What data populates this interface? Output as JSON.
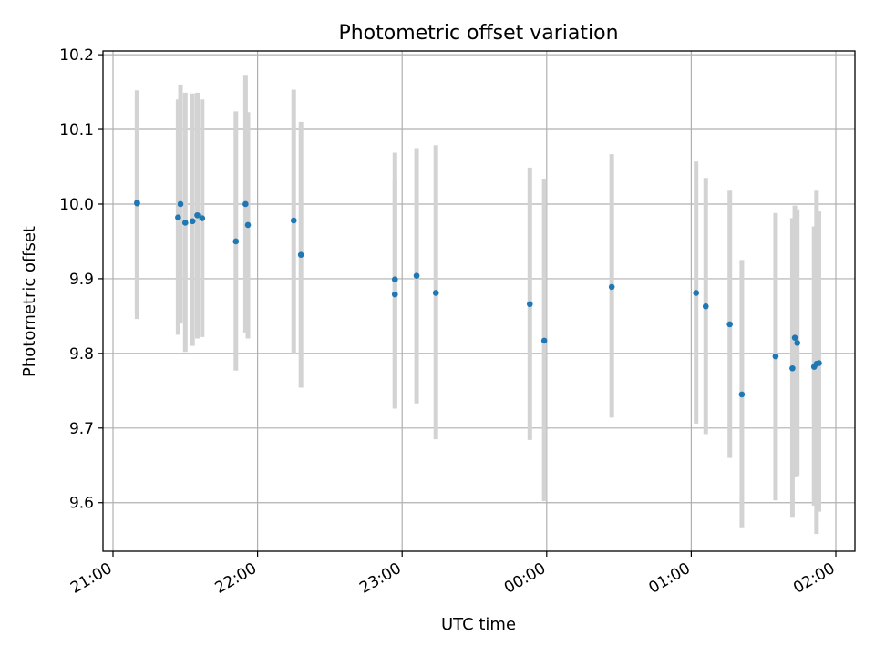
{
  "chart_data": {
    "type": "scatter",
    "title": "Photometric offset variation",
    "xlabel": "UTC time",
    "ylabel": "Photometric offset",
    "x_axis_kind": "time",
    "xlim": [
      "21:00",
      "02:00"
    ],
    "ylim": [
      9.535,
      10.205
    ],
    "x_ticks": [
      "21:00",
      "22:00",
      "23:00",
      "00:00",
      "01:00",
      "02:00"
    ],
    "y_ticks": [
      "9.6",
      "9.7",
      "9.8",
      "9.9",
      "10.0",
      "10.1",
      "10.2"
    ],
    "grid": true,
    "errorbar_color": "#d3d3d3",
    "marker_color": "#1f77b4",
    "points": [
      {
        "time": "21:10",
        "y": 10.001,
        "err_low": 0.155,
        "err_high": 0.151
      },
      {
        "time": "21:10",
        "y": 10.002,
        "err_low": 0.148,
        "err_high": 0.15
      },
      {
        "time": "21:27",
        "y": 9.982,
        "err_low": 0.157,
        "err_high": 0.158
      },
      {
        "time": "21:28",
        "y": 10.0,
        "err_low": 0.16,
        "err_high": 0.16
      },
      {
        "time": "21:30",
        "y": 9.975,
        "err_low": 0.173,
        "err_high": 0.174
      },
      {
        "time": "21:33",
        "y": 9.977,
        "err_low": 0.167,
        "err_high": 0.171
      },
      {
        "time": "21:35",
        "y": 9.985,
        "err_low": 0.165,
        "err_high": 0.164
      },
      {
        "time": "21:37",
        "y": 9.981,
        "err_low": 0.159,
        "err_high": 0.159
      },
      {
        "time": "21:51",
        "y": 9.95,
        "err_low": 0.173,
        "err_high": 0.174
      },
      {
        "time": "21:55",
        "y": 10.0,
        "err_low": 0.172,
        "err_high": 0.173
      },
      {
        "time": "21:56",
        "y": 9.972,
        "err_low": 0.152,
        "err_high": 0.151
      },
      {
        "time": "22:15",
        "y": 9.978,
        "err_low": 0.178,
        "err_high": 0.175
      },
      {
        "time": "22:18",
        "y": 9.932,
        "err_low": 0.178,
        "err_high": 0.178
      },
      {
        "time": "22:57",
        "y": 9.899,
        "err_low": 0.171,
        "err_high": 0.17
      },
      {
        "time": "22:57",
        "y": 9.879,
        "err_low": 0.153,
        "err_high": 0.152
      },
      {
        "time": "23:06",
        "y": 9.904,
        "err_low": 0.171,
        "err_high": 0.171
      },
      {
        "time": "23:14",
        "y": 9.881,
        "err_low": 0.196,
        "err_high": 0.198
      },
      {
        "time": "23:53",
        "y": 9.866,
        "err_low": 0.182,
        "err_high": 0.183
      },
      {
        "time": "23:59",
        "y": 9.817,
        "err_low": 0.215,
        "err_high": 0.216
      },
      {
        "time": "00:27",
        "y": 9.889,
        "err_low": 0.175,
        "err_high": 0.178
      },
      {
        "time": "01:02",
        "y": 9.881,
        "err_low": 0.175,
        "err_high": 0.176
      },
      {
        "time": "01:06",
        "y": 9.863,
        "err_low": 0.171,
        "err_high": 0.172
      },
      {
        "time": "01:16",
        "y": 9.839,
        "err_low": 0.179,
        "err_high": 0.179
      },
      {
        "time": "01:21",
        "y": 9.745,
        "err_low": 0.178,
        "err_high": 0.18
      },
      {
        "time": "01:35",
        "y": 9.796,
        "err_low": 0.193,
        "err_high": 0.192
      },
      {
        "time": "01:42",
        "y": 9.78,
        "err_low": 0.199,
        "err_high": 0.201
      },
      {
        "time": "01:43",
        "y": 9.821,
        "err_low": 0.187,
        "err_high": 0.177
      },
      {
        "time": "01:44",
        "y": 9.814,
        "err_low": 0.178,
        "err_high": 0.179
      },
      {
        "time": "01:51",
        "y": 9.782,
        "err_low": 0.186,
        "err_high": 0.188
      },
      {
        "time": "01:52",
        "y": 9.786,
        "err_low": 0.228,
        "err_high": 0.232
      },
      {
        "time": "01:53",
        "y": 9.787,
        "err_low": 0.199,
        "err_high": 0.203
      }
    ]
  }
}
